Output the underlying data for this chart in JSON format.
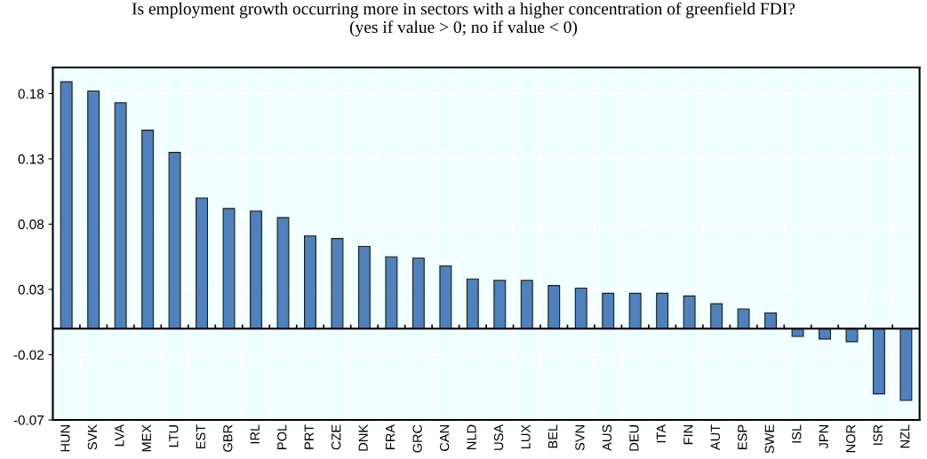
{
  "chart_data": {
    "type": "bar",
    "title": "Is employment growth occurring more in sectors with a higher concentration of greenfield FDI?\n(yes if value > 0; no if value < 0)",
    "categories": [
      "HUN",
      "SVK",
      "LVA",
      "MEX",
      "LTU",
      "EST",
      "GBR",
      "IRL",
      "POL",
      "PRT",
      "CZE",
      "DNK",
      "FRA",
      "GRC",
      "CAN",
      "NLD",
      "USA",
      "LUX",
      "BEL",
      "SVN",
      "AUS",
      "DEU",
      "ITA",
      "FIN",
      "AUT",
      "ESP",
      "SWE",
      "ISL",
      "JPN",
      "NOR",
      "ISR",
      "NZL"
    ],
    "values": [
      0.189,
      0.182,
      0.173,
      0.152,
      0.135,
      0.1,
      0.092,
      0.09,
      0.085,
      0.071,
      0.069,
      0.063,
      0.055,
      0.054,
      0.048,
      0.038,
      0.037,
      0.037,
      0.033,
      0.031,
      0.027,
      0.027,
      0.027,
      0.025,
      0.019,
      0.015,
      0.012,
      -0.006,
      -0.008,
      -0.01,
      -0.05,
      -0.055
    ],
    "color": "#4f81bd",
    "ylim": [
      -0.07,
      0.2
    ],
    "yticks": [
      -0.07,
      -0.02,
      0.03,
      0.08,
      0.13,
      0.18
    ],
    "grid": true
  }
}
